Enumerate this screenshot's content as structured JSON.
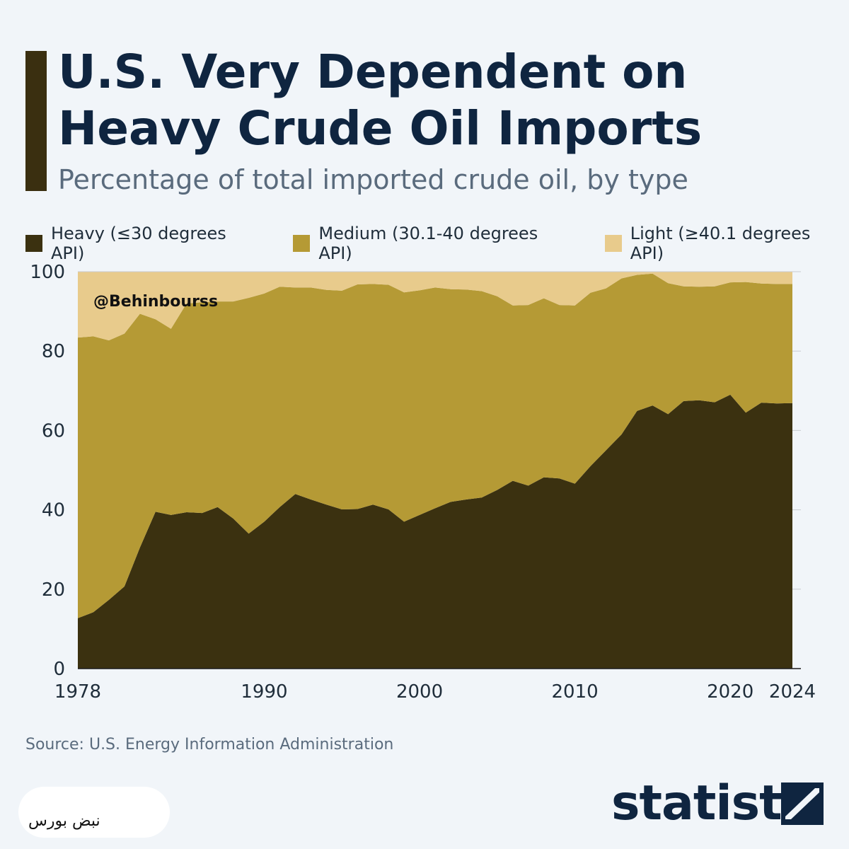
{
  "title": "U.S. Very Dependent on Heavy Crude Oil Imports",
  "subtitle": "Percentage of total imported crude oil, by type",
  "watermark": "@Behinbourss",
  "source": "Source: U.S. Energy Information Administration",
  "brand": "statista",
  "logo_text": "نبض بورس",
  "colors": {
    "heavy": "#3b3110",
    "medium": "#b59a35",
    "light": "#e8cb8c",
    "grid": "#c9ccd1"
  },
  "legend": [
    {
      "label": "Heavy (≤30 degrees API)",
      "color": "#3b3110"
    },
    {
      "label": "Medium (30.1-40 degrees API)",
      "color": "#b59a35"
    },
    {
      "label": "Light (≥40.1 degrees API)",
      "color": "#e8cb8c"
    }
  ],
  "chart_data": {
    "type": "area",
    "stacked": true,
    "title": "U.S. Very Dependent on Heavy Crude Oil Imports",
    "subtitle": "Percentage of total imported crude oil, by type",
    "ylim": [
      0,
      100
    ],
    "yticks": [
      0,
      20,
      40,
      60,
      80,
      100
    ],
    "xticks": [
      "1978",
      "1990",
      "2000",
      "2010",
      "2020",
      "2024"
    ],
    "grid": true,
    "legend_position": "top",
    "x": [
      1978,
      1979,
      1980,
      1981,
      1982,
      1983,
      1984,
      1985,
      1986,
      1987,
      1988,
      1989,
      1990,
      1991,
      1992,
      1993,
      1994,
      1995,
      1996,
      1997,
      1998,
      1999,
      2000,
      2001,
      2002,
      2003,
      2004,
      2005,
      2006,
      2007,
      2008,
      2009,
      2010,
      2011,
      2012,
      2013,
      2014,
      2015,
      2016,
      2017,
      2018,
      2019,
      2020,
      2021,
      2022,
      2023,
      2024
    ],
    "series": [
      {
        "name": "Heavy (≤30 degrees API)",
        "values": [
          12.7,
          14.2,
          17.3,
          20.7,
          30.5,
          39.5,
          38.7,
          39.4,
          39.2,
          40.7,
          37.8,
          34,
          37,
          40.7,
          44,
          42.6,
          41.3,
          40.1,
          40.2,
          41.3,
          40.1,
          37,
          38.7,
          40.4,
          42,
          42.6,
          43.1,
          45,
          47.3,
          46.1,
          48.2,
          47.9,
          46.6,
          51,
          55,
          59,
          64.9,
          66.3,
          64.1,
          67.4,
          67.6,
          67.1,
          69,
          64.5,
          67,
          66.8,
          66.9
        ]
      },
      {
        "name": "Medium (30.1-40 degrees API)",
        "values": [
          70.7,
          69.5,
          65.4,
          63.7,
          58.9,
          48.5,
          46.9,
          52.6,
          53.1,
          51.8,
          54.7,
          59.4,
          57.5,
          55.5,
          52,
          53.4,
          54.1,
          55.1,
          56.6,
          55.6,
          56.6,
          57.8,
          56.6,
          55.6,
          53.6,
          52.9,
          52,
          48.8,
          44.2,
          45.5,
          45.1,
          43.7,
          44.9,
          43.7,
          40.8,
          39.3,
          34.3,
          33.2,
          33,
          28.9,
          28.6,
          29.2,
          28.3,
          32.9,
          30,
          30.1,
          30
        ]
      },
      {
        "name": "Light (≥40.1 degrees API)",
        "values": [
          16.6,
          16.3,
          17.3,
          15.6,
          10.6,
          12,
          14.4,
          8,
          7.7,
          7.5,
          7.5,
          6.6,
          5.5,
          3.8,
          4,
          4,
          4.6,
          4.8,
          3.2,
          3.1,
          3.3,
          5.2,
          4.7,
          4,
          4.4,
          4.5,
          4.9,
          6.2,
          8.5,
          8.4,
          6.7,
          8.4,
          8.5,
          5.3,
          4.2,
          1.7,
          0.8,
          0.5,
          2.9,
          3.7,
          3.8,
          3.7,
          2.7,
          2.6,
          3,
          3.1,
          3.1
        ]
      }
    ]
  }
}
